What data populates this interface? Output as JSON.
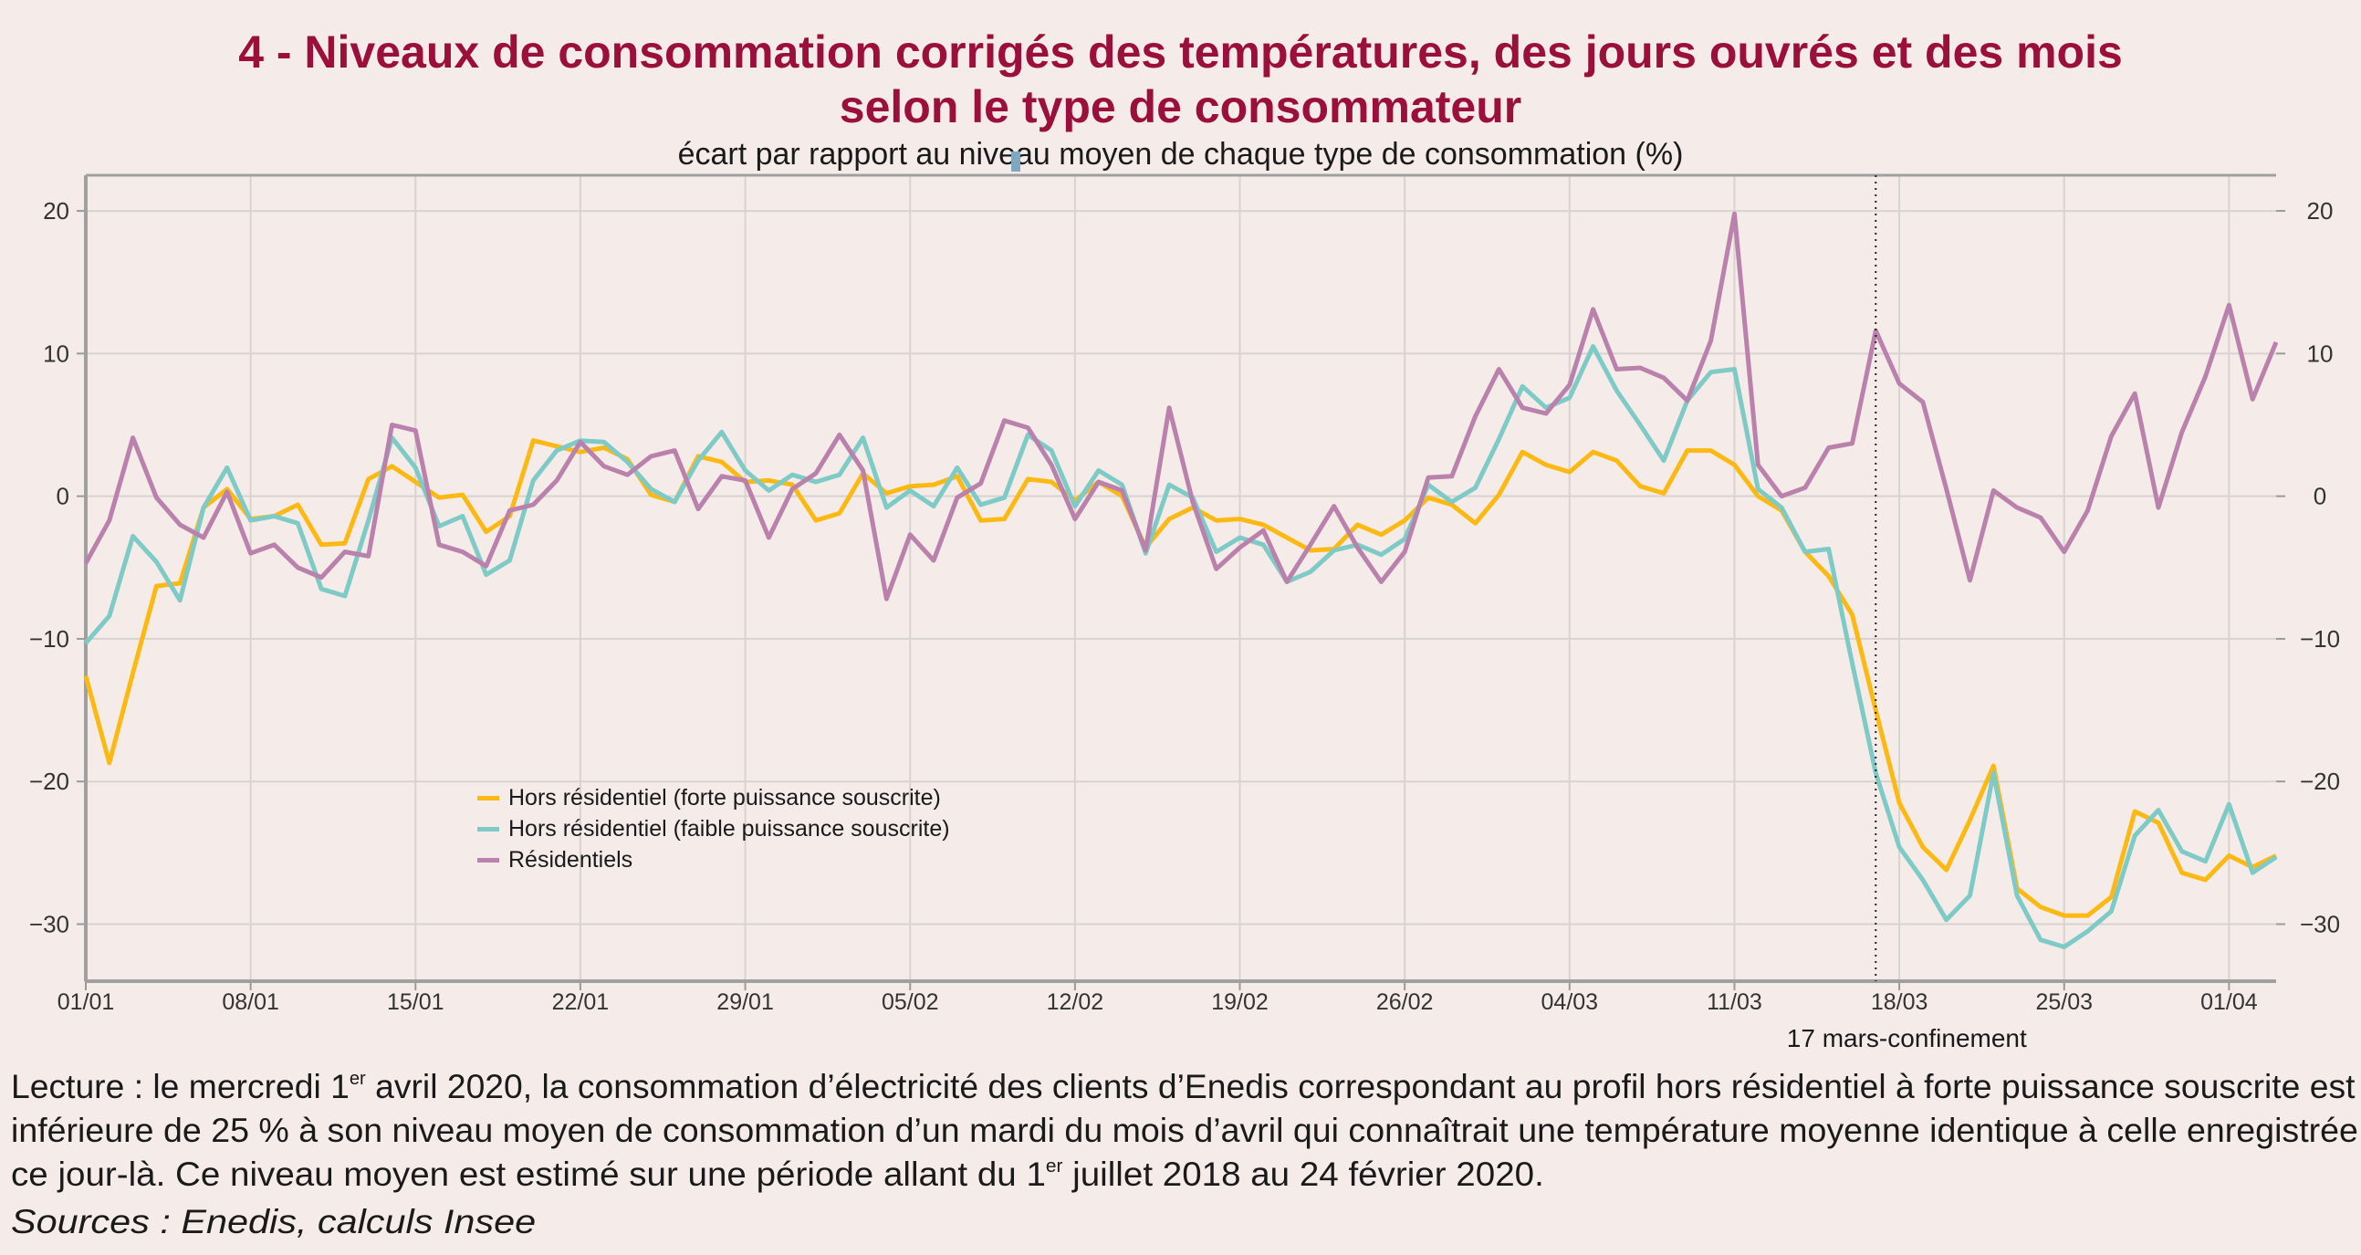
{
  "title": {
    "line1": "4 - Niveaux de consommation corrigés des températures, des jours ouvrés et des mois",
    "line2": "selon le type de consommateur",
    "subtitle": "écart par rapport au niveau moyen de chaque type de consommation (%)"
  },
  "footer": {
    "l1_a": "Lecture : le mercredi 1",
    "l1_sup": "er",
    "l1_b": " avril 2020, la consommation d’électricité des clients d’Enedis correspondant au profil hors résidentiel à forte puissance souscrite est",
    "l2": "inférieure de 25 % à son niveau moyen de consommation d’un mardi du mois d’avril qui connaîtrait une température moyenne identique à celle enregistrée",
    "l3_a": "ce jour-là. Ce niveau moyen est estimé sur une période allant du 1",
    "l3_sup": "er",
    "l3_b": " juillet 2018 au 24 février 2020.",
    "sources": "Sources : Enedis, calculs Insee"
  },
  "chart_data": {
    "type": "line",
    "title": "4 - Niveaux de consommation corrigés des températures, des jours ouvrés et des mois selon le type de consommateur",
    "subtitle": "écart par rapport au niveau moyen de chaque type de consommation (%)",
    "xlabel": "",
    "ylabel": "",
    "ylim": [
      -34,
      22.5
    ],
    "yticks": [
      20,
      10,
      0,
      -10,
      -20,
      -30
    ],
    "ytick_labels": [
      "20",
      "10",
      "0",
      "−10",
      "−20",
      "−30"
    ],
    "y_axis_both_sides": true,
    "grid": true,
    "legend_position": "lower-left",
    "xticks": [
      "01/01",
      "08/01",
      "15/01",
      "22/01",
      "29/01",
      "05/02",
      "12/02",
      "19/02",
      "26/02",
      "04/03",
      "11/03",
      "18/03",
      "25/03",
      "01/04"
    ],
    "x": [
      "01/01",
      "02/01",
      "03/01",
      "04/01",
      "05/01",
      "06/01",
      "07/01",
      "08/01",
      "09/01",
      "10/01",
      "11/01",
      "12/01",
      "13/01",
      "14/01",
      "15/01",
      "16/01",
      "17/01",
      "18/01",
      "19/01",
      "20/01",
      "21/01",
      "22/01",
      "23/01",
      "24/01",
      "25/01",
      "26/01",
      "27/01",
      "28/01",
      "29/01",
      "30/01",
      "31/01",
      "01/02",
      "02/02",
      "03/02",
      "04/02",
      "05/02",
      "06/02",
      "07/02",
      "08/02",
      "09/02",
      "10/02",
      "11/02",
      "12/02",
      "13/02",
      "14/02",
      "15/02",
      "16/02",
      "17/02",
      "18/02",
      "19/02",
      "20/02",
      "21/02",
      "22/02",
      "23/02",
      "24/02",
      "25/02",
      "26/02",
      "27/02",
      "28/02",
      "29/02",
      "01/03",
      "02/03",
      "03/03",
      "04/03",
      "05/03",
      "06/03",
      "07/03",
      "08/03",
      "09/03",
      "10/03",
      "11/03",
      "12/03",
      "13/03",
      "14/03",
      "15/03",
      "16/03",
      "17/03",
      "18/03",
      "19/03",
      "20/03",
      "21/03",
      "22/03",
      "23/03",
      "24/03",
      "25/03",
      "26/03",
      "27/03",
      "28/03",
      "29/03",
      "30/03",
      "31/03",
      "01/04",
      "02/04",
      "03/04"
    ],
    "series": [
      {
        "name": "Hors résidentiel (forte puissance souscrite)",
        "color": "#fdb913",
        "values": [
          -12.6,
          -18.7,
          -12.4,
          -6.3,
          -6.1,
          -0.8,
          0.5,
          -1.6,
          -1.4,
          -0.6,
          -3.4,
          -3.3,
          1.2,
          2.1,
          1.0,
          -0.1,
          0.1,
          -2.5,
          -1.4,
          3.9,
          3.5,
          3.1,
          3.4,
          2.6,
          0.1,
          -0.4,
          2.8,
          2.4,
          1.0,
          1.1,
          0.8,
          -1.7,
          -1.2,
          1.6,
          0.2,
          0.7,
          0.8,
          1.4,
          -1.7,
          -1.6,
          1.2,
          1.0,
          -0.3,
          1.0,
          0.0,
          -3.6,
          -1.6,
          -0.8,
          -1.7,
          -1.6,
          -2.0,
          -2.9,
          -3.8,
          -3.7,
          -2.0,
          -2.7,
          -1.7,
          -0.1,
          -0.6,
          -1.9,
          0.1,
          3.1,
          2.2,
          1.7,
          3.1,
          2.5,
          0.7,
          0.2,
          3.2,
          3.2,
          2.2,
          0.0,
          -1.0,
          -3.9,
          -5.6,
          -8.3,
          -15.0,
          -21.5,
          -24.6,
          -26.2,
          -22.7,
          -18.9,
          -27.5,
          -28.8,
          -29.4,
          -29.4,
          -28.1,
          -22.1,
          -22.9,
          -26.4,
          -26.9,
          -25.2,
          -26.0,
          -25.2
        ]
      },
      {
        "name": "Hors résidentiel (faible puissance souscrite)",
        "color": "#7ecac6",
        "values": [
          -10.3,
          -8.4,
          -2.8,
          -4.6,
          -7.3,
          -0.8,
          2.0,
          -1.7,
          -1.4,
          -1.9,
          -6.5,
          -7.0,
          -1.7,
          4.1,
          2.0,
          -2.1,
          -1.4,
          -5.5,
          -4.5,
          1.1,
          3.2,
          3.9,
          3.8,
          2.4,
          0.5,
          -0.4,
          2.5,
          4.5,
          1.8,
          0.4,
          1.5,
          1.0,
          1.5,
          4.1,
          -0.8,
          0.4,
          -0.7,
          2.0,
          -0.6,
          -0.1,
          4.3,
          3.2,
          -0.7,
          1.8,
          0.8,
          -4.0,
          0.8,
          -0.1,
          -3.9,
          -2.9,
          -3.4,
          -6.0,
          -5.3,
          -3.8,
          -3.4,
          -4.1,
          -3.0,
          0.8,
          -0.4,
          0.6,
          4.0,
          7.7,
          6.2,
          6.9,
          10.5,
          7.4,
          5.0,
          2.5,
          6.7,
          8.7,
          8.9,
          0.5,
          -0.8,
          -3.9,
          -3.7,
          -11.7,
          -19.4,
          -24.6,
          -26.9,
          -29.7,
          -28.0,
          -19.4,
          -28.0,
          -31.1,
          -31.6,
          -30.5,
          -29.1,
          -23.8,
          -22.0,
          -24.9,
          -25.6,
          -21.6,
          -26.4,
          -25.3
        ]
      },
      {
        "name": "Résidentiels",
        "color": "#b981ab",
        "values": [
          -4.7,
          -1.7,
          4.1,
          -0.1,
          -2.0,
          -2.9,
          0.3,
          -4.0,
          -3.4,
          -5.0,
          -5.7,
          -3.9,
          -4.2,
          5.0,
          4.6,
          -3.4,
          -3.9,
          -4.9,
          -1.0,
          -0.6,
          1.1,
          3.8,
          2.1,
          1.5,
          2.8,
          3.2,
          -0.9,
          1.4,
          1.1,
          -2.9,
          0.5,
          1.6,
          4.3,
          1.8,
          -7.2,
          -2.7,
          -4.5,
          -0.1,
          0.9,
          5.3,
          4.8,
          2.2,
          -1.6,
          1.0,
          0.4,
          -3.8,
          6.2,
          -0.4,
          -5.1,
          -3.6,
          -2.4,
          -6.0,
          -3.4,
          -0.7,
          -3.6,
          -6.0,
          -3.9,
          1.3,
          1.4,
          5.6,
          8.9,
          6.2,
          5.8,
          7.8,
          13.1,
          8.9,
          9.0,
          8.3,
          6.7,
          10.9,
          19.8,
          2.2,
          0.0,
          0.6,
          3.4,
          3.7,
          11.6,
          7.9,
          6.6,
          0.5,
          -5.9,
          0.4,
          -0.8,
          -1.5,
          -3.9,
          -1.0,
          4.2,
          7.2,
          -0.8,
          4.5,
          8.4,
          13.4,
          6.8,
          10.8
        ]
      }
    ],
    "annotations": [
      {
        "type": "vertical-dotted-line",
        "x": "17/03",
        "label": "17 mars-confinement"
      }
    ]
  }
}
